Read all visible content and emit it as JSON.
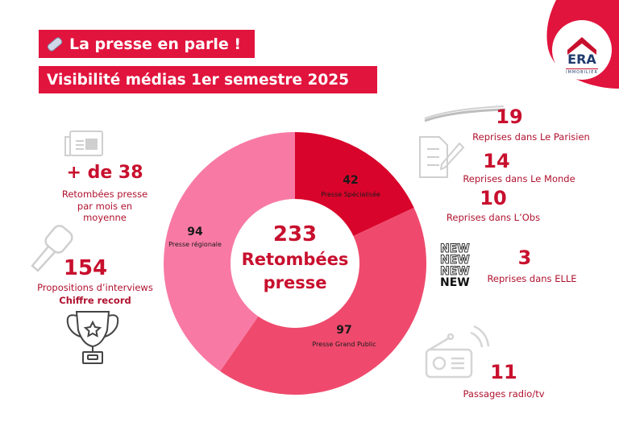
{
  "header": {
    "title": "La presse en parle !",
    "subtitle": "Visibilité médias 1er semestre 2025",
    "title_icon": "rolled-newspaper-icon"
  },
  "logo": {
    "text": "ERA",
    "subtext": "IMMOBILIER",
    "color": "#e1143d"
  },
  "left": {
    "monthly": {
      "value": "+ de 38",
      "label_lines": [
        "Retombées presse",
        "par mois en",
        "moyenne"
      ],
      "icon": "newspaper-icon"
    },
    "interviews": {
      "value": "154",
      "label": "Propositions d’interviews",
      "note": "Chiffre record",
      "icon": "microphone-icon",
      "trophy_icon": "trophy-icon"
    }
  },
  "right": {
    "items": [
      {
        "value": "19",
        "label": "Reprises dans Le Parisien"
      },
      {
        "value": "14",
        "label": "Reprises dans Le Monde"
      },
      {
        "value": "10",
        "label": "Reprises dans L’Obs"
      },
      {
        "value": "3",
        "label": "Reprises dans ELLE"
      },
      {
        "value": "11",
        "label": "Passages radio/tv"
      }
    ],
    "new_badge": [
      "NEW",
      "NEW",
      "NEW",
      "NEW"
    ]
  },
  "chart_data": {
    "type": "pie",
    "donut": true,
    "center_value": "233",
    "center_label_lines": [
      "Retombées",
      "presse"
    ],
    "slices": [
      {
        "label": "Presse Spécialisée",
        "value": 42,
        "color": "#d9042b"
      },
      {
        "label": "Presse Grand Public",
        "value": 97,
        "color": "#ef4a6d"
      },
      {
        "label": "Presse régionale",
        "value": 94,
        "color": "#f87aa4"
      }
    ]
  }
}
